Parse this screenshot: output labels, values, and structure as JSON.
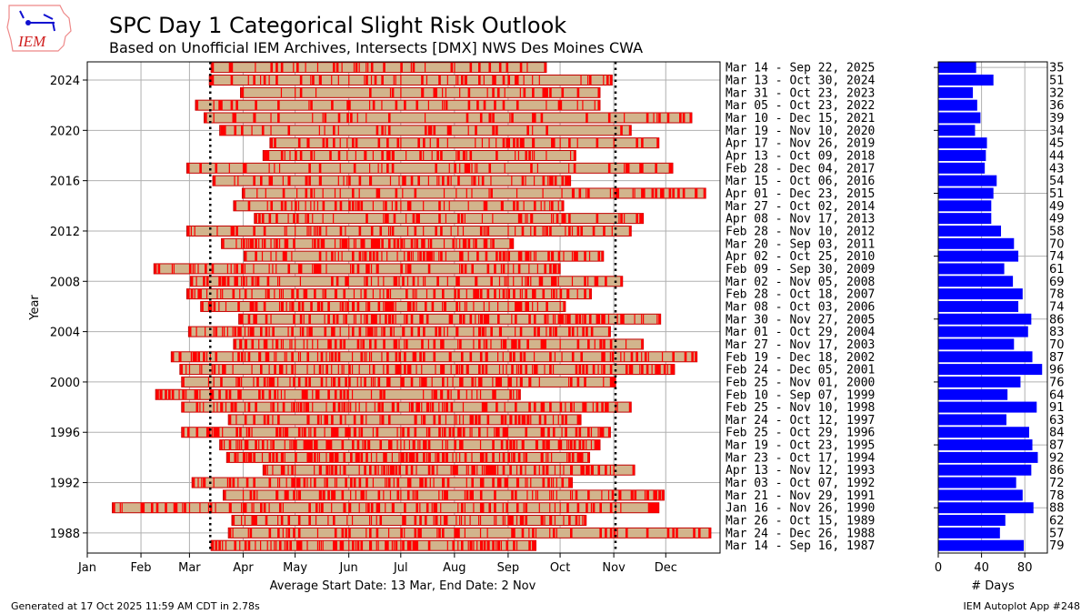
{
  "header": {
    "title": "SPC Day 1 Categorical Slight Risk Outlook",
    "subtitle": "Based on Unofficial IEM Archives, Intersects [DMX] NWS Des Moines CWA",
    "logo_text": "IEM"
  },
  "footer": {
    "generated": "Generated at 17 Oct 2025 11:59 AM CDT in 2.78s",
    "app": "IEM Autoplot App #248"
  },
  "colors": {
    "event": "#ff0000",
    "span": "#d2b48c",
    "days_bar": "#0000ff",
    "grid": "#b0b0b0"
  },
  "chart_data": [
    {
      "type": "timeline",
      "ylabel": "Year",
      "xlabel": "Average Start Date: 13 Mar, End Date: 2 Nov",
      "x_ticks": [
        "Jan",
        "Feb",
        "Mar",
        "Apr",
        "May",
        "Jun",
        "Jul",
        "Aug",
        "Sep",
        "Oct",
        "Nov",
        "Dec"
      ],
      "y_ticks": [
        "1988",
        "1992",
        "1996",
        "2000",
        "2004",
        "2008",
        "2012",
        "2016",
        "2020",
        "2024"
      ],
      "ylim": [
        1986.4,
        2025.5
      ],
      "grid": true,
      "reference_lines": [
        "Mar 13",
        "Nov 02"
      ],
      "rows": [
        {
          "year": 2025,
          "label": "Mar 14 - Sep 22, 2025",
          "days": 35
        },
        {
          "year": 2024,
          "label": "Mar 13 - Oct 30, 2024",
          "days": 51
        },
        {
          "year": 2023,
          "label": "Mar 31 - Oct 23, 2023",
          "days": 32
        },
        {
          "year": 2022,
          "label": "Mar 05 - Oct 23, 2022",
          "days": 36
        },
        {
          "year": 2021,
          "label": "Mar 10 - Dec 15, 2021",
          "days": 39
        },
        {
          "year": 2020,
          "label": "Mar 19 - Nov 10, 2020",
          "days": 34
        },
        {
          "year": 2019,
          "label": "Apr 17 - Nov 26, 2019",
          "days": 45
        },
        {
          "year": 2018,
          "label": "Apr 13 - Oct 09, 2018",
          "days": 44
        },
        {
          "year": 2017,
          "label": "Feb 28 - Dec 04, 2017",
          "days": 43
        },
        {
          "year": 2016,
          "label": "Mar 15 - Oct 06, 2016",
          "days": 54
        },
        {
          "year": 2015,
          "label": "Apr 01 - Dec 23, 2015",
          "days": 51
        },
        {
          "year": 2014,
          "label": "Mar 27 - Oct 02, 2014",
          "days": 49
        },
        {
          "year": 2013,
          "label": "Apr 08 - Nov 17, 2013",
          "days": 49
        },
        {
          "year": 2012,
          "label": "Feb 28 - Nov 10, 2012",
          "days": 58
        },
        {
          "year": 2011,
          "label": "Mar 20 - Sep 03, 2011",
          "days": 70
        },
        {
          "year": 2010,
          "label": "Apr 02 - Oct 25, 2010",
          "days": 74
        },
        {
          "year": 2009,
          "label": "Feb 09 - Sep 30, 2009",
          "days": 61
        },
        {
          "year": 2008,
          "label": "Mar 02 - Nov 05, 2008",
          "days": 69
        },
        {
          "year": 2007,
          "label": "Feb 28 - Oct 18, 2007",
          "days": 78
        },
        {
          "year": 2006,
          "label": "Mar 08 - Oct 03, 2006",
          "days": 74
        },
        {
          "year": 2005,
          "label": "Mar 30 - Nov 27, 2005",
          "days": 86
        },
        {
          "year": 2004,
          "label": "Mar 01 - Oct 29, 2004",
          "days": 83
        },
        {
          "year": 2003,
          "label": "Mar 27 - Nov 17, 2003",
          "days": 70
        },
        {
          "year": 2002,
          "label": "Feb 19 - Dec 18, 2002",
          "days": 87
        },
        {
          "year": 2001,
          "label": "Feb 24 - Dec 05, 2001",
          "days": 96
        },
        {
          "year": 2000,
          "label": "Feb 25 - Nov 01, 2000",
          "days": 76
        },
        {
          "year": 1999,
          "label": "Feb 10 - Sep 07, 1999",
          "days": 64
        },
        {
          "year": 1998,
          "label": "Feb 25 - Nov 10, 1998",
          "days": 91
        },
        {
          "year": 1997,
          "label": "Mar 24 - Oct 12, 1997",
          "days": 63
        },
        {
          "year": 1996,
          "label": "Feb 25 - Oct 29, 1996",
          "days": 84
        },
        {
          "year": 1995,
          "label": "Mar 19 - Oct 23, 1995",
          "days": 87
        },
        {
          "year": 1994,
          "label": "Mar 23 - Oct 17, 1994",
          "days": 92
        },
        {
          "year": 1993,
          "label": "Apr 13 - Nov 12, 1993",
          "days": 86
        },
        {
          "year": 1992,
          "label": "Mar 03 - Oct 07, 1992",
          "days": 72
        },
        {
          "year": 1991,
          "label": "Mar 21 - Nov 29, 1991",
          "days": 78
        },
        {
          "year": 1990,
          "label": "Jan 16 - Nov 26, 1990",
          "days": 88
        },
        {
          "year": 1989,
          "label": "Mar 26 - Oct 15, 1989",
          "days": 62
        },
        {
          "year": 1988,
          "label": "Mar 24 - Dec 26, 1988",
          "days": 57
        },
        {
          "year": 1987,
          "label": "Mar 14 - Sep 16, 1987",
          "days": 79
        }
      ]
    },
    {
      "type": "bar",
      "orientation": "horizontal",
      "xlabel": "# Days",
      "x_ticks": [
        "0",
        "40",
        "80"
      ],
      "xlim": [
        0,
        101
      ]
    }
  ]
}
